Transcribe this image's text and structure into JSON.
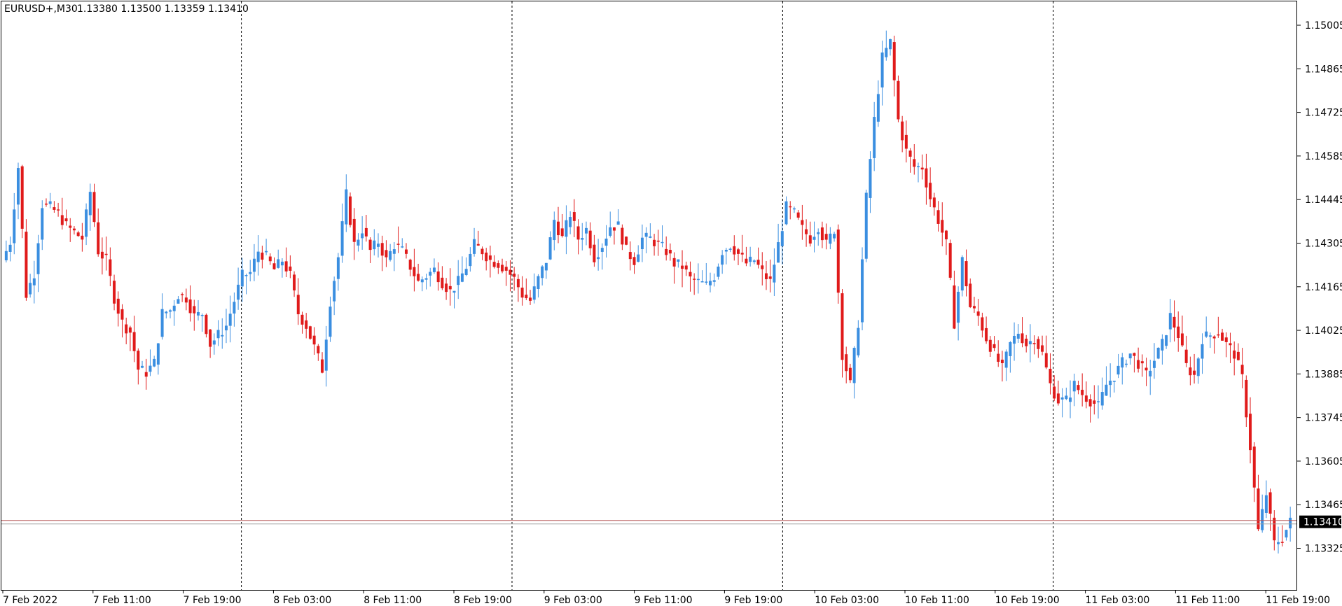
{
  "header": {
    "symbol": "EURUSD+,M30",
    "ohlc": "1.13380 1.13500 1.13359 1.13410"
  },
  "chart_data": {
    "type": "candlestick",
    "ylim": [
      1.1327,
      1.1505
    ],
    "y_ticks": [
      "1.15005",
      "1.14865",
      "1.14725",
      "1.14585",
      "1.14445",
      "1.14305",
      "1.14165",
      "1.14025",
      "1.13885",
      "1.13745",
      "1.13605",
      "1.13465",
      "1.13325"
    ],
    "x_ticks": [
      "7 Feb 2022",
      "7 Feb 11:00",
      "7 Feb 19:00",
      "8 Feb 03:00",
      "8 Feb 11:00",
      "8 Feb 19:00",
      "9 Feb 03:00",
      "9 Feb 11:00",
      "9 Feb 19:00",
      "10 Feb 03:00",
      "10 Feb 11:00",
      "10 Feb 19:00",
      "11 Feb 03:00",
      "11 Feb 11:00",
      "11 Feb 19:00"
    ],
    "day_separators_after_tick": [
      2,
      5,
      8,
      11
    ],
    "current_price": "1.13410",
    "bull_color": "#3a8ee0",
    "bear_color": "#e01a1a",
    "key_prices": [
      1.1425,
      1.1431,
      1.1455,
      1.1414,
      1.1421,
      1.1443,
      1.1442,
      1.144,
      1.1436,
      1.1434,
      1.1432,
      1.1447,
      1.1428,
      1.1425,
      1.1413,
      1.1405,
      1.1402,
      1.139,
      1.1389,
      1.1392,
      1.1408,
      1.1409,
      1.1414,
      1.1413,
      1.1407,
      1.1408,
      1.1398,
      1.1401,
      1.1404,
      1.1412,
      1.142,
      1.1421,
      1.1428,
      1.1426,
      1.1422,
      1.1425,
      1.142,
      1.1408,
      1.1404,
      1.1397,
      1.139,
      1.1412,
      1.1426,
      1.1446,
      1.143,
      1.1435,
      1.1428,
      1.1431,
      1.1425,
      1.143,
      1.1428,
      1.1423,
      1.1418,
      1.142,
      1.1422,
      1.1418,
      1.1415,
      1.1418,
      1.1423,
      1.143,
      1.1428,
      1.1425,
      1.1424,
      1.1422,
      1.1419,
      1.1414,
      1.1412,
      1.1419,
      1.1425,
      1.1438,
      1.1432,
      1.144,
      1.1432,
      1.1435,
      1.1426,
      1.143,
      1.1436,
      1.1436,
      1.1428,
      1.1425,
      1.1432,
      1.1432,
      1.143,
      1.1428,
      1.1424,
      1.1423,
      1.1419,
      1.1418,
      1.1417,
      1.142,
      1.1428,
      1.143,
      1.1427,
      1.1424,
      1.1425,
      1.1421,
      1.1418,
      1.143,
      1.1442,
      1.144,
      1.1435,
      1.1432,
      1.1436,
      1.143,
      1.1435,
      1.1395,
      1.1385,
      1.1405,
      1.1445,
      1.147,
      1.149,
      1.1495,
      1.147,
      1.146,
      1.1455,
      1.1455,
      1.1445,
      1.1438,
      1.143,
      1.1405,
      1.1425,
      1.141,
      1.1407,
      1.14,
      1.1395,
      1.139,
      1.1398,
      1.1402,
      1.1398,
      1.14,
      1.1395,
      1.1385,
      1.138,
      1.138,
      1.1385,
      1.1382,
      1.138,
      1.1378,
      1.1385,
      1.1388,
      1.1392,
      1.1395,
      1.1392,
      1.1388,
      1.1393,
      1.1398,
      1.1407,
      1.1401,
      1.1391,
      1.1388,
      1.14,
      1.1401,
      1.1402,
      1.1398,
      1.1395,
      1.1387,
      1.1365,
      1.1338,
      1.135,
      1.1334,
      1.1336,
      1.1341
    ]
  }
}
